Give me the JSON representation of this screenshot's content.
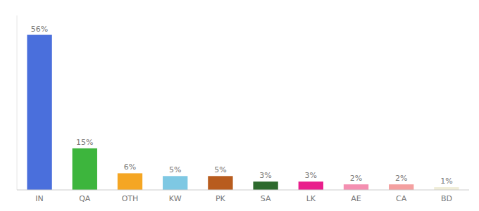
{
  "chart_data": {
    "type": "bar",
    "categories": [
      "IN",
      "QA",
      "OTH",
      "KW",
      "PK",
      "SA",
      "LK",
      "AE",
      "CA",
      "BD"
    ],
    "values": [
      56,
      15,
      6,
      5,
      5,
      3,
      3,
      2,
      2,
      1
    ],
    "value_labels": [
      "56%",
      "15%",
      "6%",
      "5%",
      "5%",
      "3%",
      "3%",
      "2%",
      "2%",
      "1%"
    ],
    "colors": [
      "#4a6fdc",
      "#3db53d",
      "#f5a623",
      "#7ec8e3",
      "#b85c1e",
      "#2d6a2d",
      "#e91e8c",
      "#f48fb1",
      "#f4a0a0",
      "#f0edd8"
    ],
    "ylim": [
      0,
      63
    ],
    "data_labels": true,
    "tick_labels": "x",
    "grid": false
  }
}
